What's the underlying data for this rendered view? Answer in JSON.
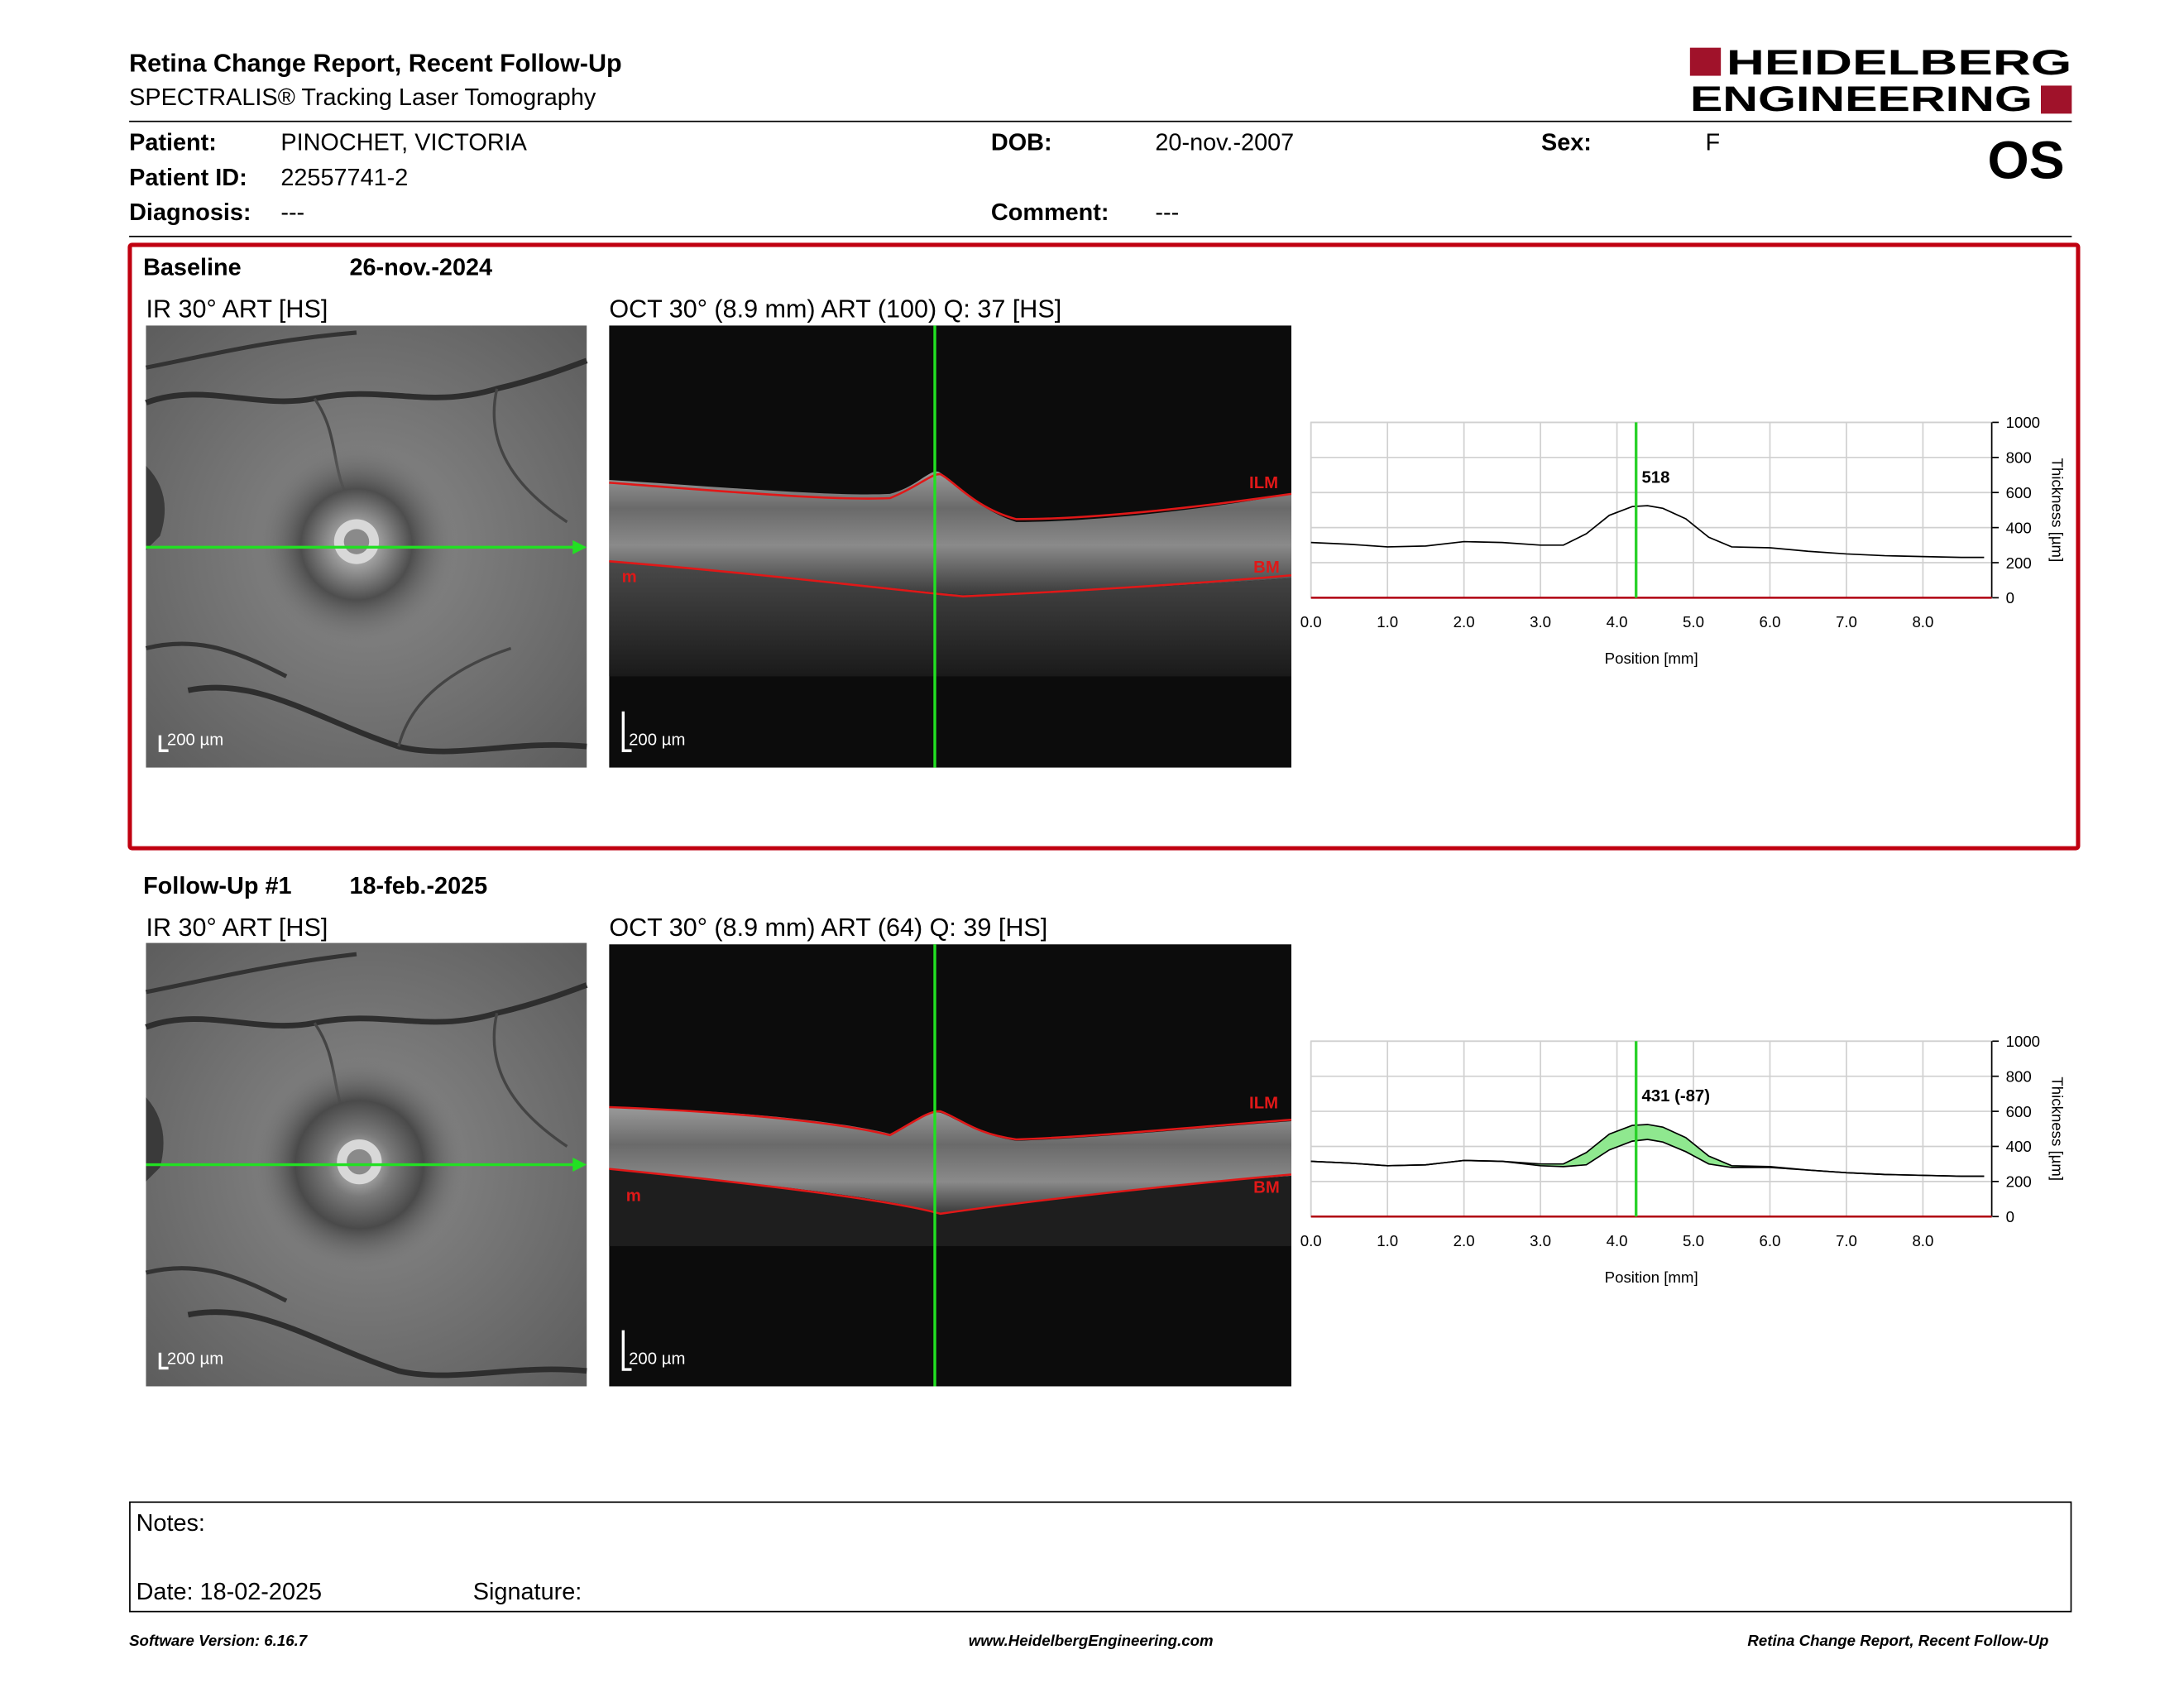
{
  "header": {
    "title": "Retina Change Report, Recent Follow-Up",
    "subtitle": "SPECTRALIS® Tracking Laser Tomography",
    "logo_line1": "HEIDELBERG",
    "logo_line2": "ENGINEERING",
    "eye": "OS"
  },
  "patient": {
    "patient_label": "Patient:",
    "patient_value": "PINOCHET, VICTORIA",
    "id_label": "Patient ID:",
    "id_value": "22557741-2",
    "diagnosis_label": "Diagnosis:",
    "diagnosis_value": "---",
    "dob_label": "DOB:",
    "dob_value": "20-nov.-2007",
    "comment_label": "Comment:",
    "comment_value": "---",
    "sex_label": "Sex:",
    "sex_value": "F"
  },
  "baseline": {
    "label": "Baseline",
    "date": "26-nov.-2024",
    "ir_caption": "IR 30° ART [HS]",
    "oct_caption": "OCT 30° (8.9 mm) ART (100) Q: 37 [HS]",
    "scale": "200 µm",
    "ilm": "ILM",
    "bm": "BM",
    "m": "m",
    "marker_value": "518"
  },
  "followup": {
    "label": "Follow-Up #1",
    "date": "18-feb.-2025",
    "ir_caption": "IR 30° ART [HS]",
    "oct_caption": "OCT 30° (8.9 mm) ART (64) Q: 39 [HS]",
    "scale": "200 µm",
    "ilm": "ILM",
    "bm": "BM",
    "m": "m",
    "marker_value": "431 (-87)"
  },
  "chart_data": [
    {
      "type": "line",
      "xlabel": "Position [mm]",
      "ylabel": "Thickness [µm]",
      "xlim": [
        0,
        8.9
      ],
      "ylim": [
        0,
        1000
      ],
      "xticks": [
        "0.0",
        "1.0",
        "2.0",
        "3.0",
        "4.0",
        "5.0",
        "6.0",
        "7.0",
        "8.0"
      ],
      "yticks": [
        "0",
        "200",
        "400",
        "600",
        "800",
        "1000"
      ],
      "grid": true,
      "marker_x": 4.25,
      "marker_label": "518",
      "series": [
        {
          "x": [
            0.0,
            0.5,
            1.0,
            1.5,
            2.0,
            2.5,
            3.0,
            3.3,
            3.6,
            3.9,
            4.2,
            4.4,
            4.6,
            4.9,
            5.2,
            5.5,
            6.0,
            6.5,
            7.0,
            7.5,
            8.0,
            8.5,
            8.8
          ],
          "y": [
            315,
            305,
            290,
            295,
            320,
            315,
            300,
            300,
            365,
            470,
            520,
            525,
            510,
            450,
            345,
            290,
            285,
            265,
            250,
            240,
            235,
            230,
            230
          ]
        }
      ]
    },
    {
      "type": "area",
      "xlabel": "Position [mm]",
      "ylabel": "Thickness [µm]",
      "xlim": [
        0,
        8.9
      ],
      "ylim": [
        0,
        1000
      ],
      "xticks": [
        "0.0",
        "1.0",
        "2.0",
        "3.0",
        "4.0",
        "5.0",
        "6.0",
        "7.0",
        "8.0"
      ],
      "yticks": [
        "0",
        "200",
        "400",
        "600",
        "800",
        "1000"
      ],
      "grid": true,
      "marker_x": 4.25,
      "marker_label": "431 (-87)",
      "series": [
        {
          "x": [
            0.0,
            0.5,
            1.0,
            1.5,
            2.0,
            2.5,
            3.0,
            3.3,
            3.6,
            3.9,
            4.2,
            4.4,
            4.6,
            4.9,
            5.2,
            5.5,
            6.0,
            6.5,
            7.0,
            7.5,
            8.0,
            8.5,
            8.8
          ],
          "y": [
            315,
            305,
            290,
            295,
            320,
            315,
            300,
            300,
            365,
            470,
            520,
            525,
            510,
            450,
            345,
            290,
            285,
            265,
            250,
            240,
            235,
            230,
            230
          ]
        },
        {
          "x": [
            0.0,
            0.5,
            1.0,
            1.5,
            2.0,
            2.5,
            3.0,
            3.3,
            3.6,
            3.9,
            4.2,
            4.4,
            4.6,
            4.9,
            5.2,
            5.5,
            6.0,
            6.5,
            7.0,
            7.5,
            8.0,
            8.5,
            8.8
          ],
          "y": [
            315,
            305,
            290,
            295,
            320,
            315,
            290,
            285,
            295,
            380,
            430,
            440,
            425,
            370,
            300,
            280,
            280,
            265,
            250,
            240,
            235,
            230,
            230
          ]
        }
      ]
    }
  ],
  "notes": {
    "notes_label": "Notes:",
    "date_label": "Date: 18-02-2025",
    "signature_label": "Signature:"
  },
  "footer": {
    "left": "Software Version: 6.16.7",
    "center": "www.HeidelbergEngineering.com",
    "right": "Retina Change Report, Recent Follow-Up"
  },
  "colors": {
    "accent": "#c00010",
    "marker": "#2ad12a",
    "change_fill": "#8fe88f"
  }
}
